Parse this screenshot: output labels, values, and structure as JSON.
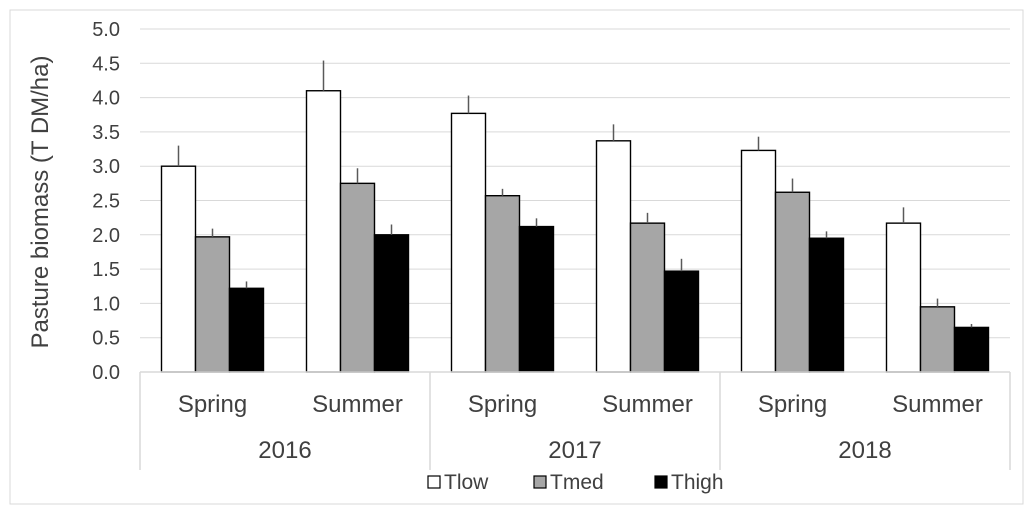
{
  "chart_data": {
    "type": "bar",
    "title": "",
    "ylabel": "Pasture biomass (T DM/ha)",
    "xlabel": "",
    "ylim": [
      0,
      5.0
    ],
    "yticks": [
      "0.0",
      "0.5",
      "1.0",
      "1.5",
      "2.0",
      "2.5",
      "3.0",
      "3.5",
      "4.0",
      "4.5",
      "5.0"
    ],
    "grid": true,
    "legend_position": "bottom",
    "groups": [
      {
        "label": "2016",
        "categories": [
          "Spring",
          "Summer"
        ]
      },
      {
        "label": "2017",
        "categories": [
          "Spring",
          "Summer"
        ]
      },
      {
        "label": "2018",
        "categories": [
          "Spring",
          "Summer"
        ]
      }
    ],
    "series": [
      {
        "name": "Tlow",
        "color": "#ffffff",
        "values": [
          3.0,
          4.1,
          3.77,
          3.37,
          3.23,
          2.17
        ],
        "errors": [
          0.3,
          0.44,
          0.26,
          0.24,
          0.2,
          0.23
        ]
      },
      {
        "name": "Tmed",
        "color": "#a6a6a6",
        "values": [
          1.97,
          2.75,
          2.57,
          2.17,
          2.62,
          0.95
        ],
        "errors": [
          0.12,
          0.22,
          0.1,
          0.15,
          0.2,
          0.12
        ]
      },
      {
        "name": "Thigh",
        "color": "#000000",
        "values": [
          1.22,
          2.0,
          2.12,
          1.47,
          1.95,
          0.65
        ],
        "errors": [
          0.1,
          0.15,
          0.12,
          0.18,
          0.1,
          0.05
        ]
      }
    ]
  }
}
